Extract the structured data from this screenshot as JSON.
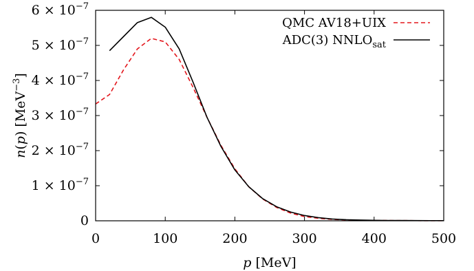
{
  "chart_data": {
    "type": "line",
    "xlabel": "p [MeV]",
    "ylabel": "n(p) [MeV^-3]",
    "xlim": [
      0,
      500
    ],
    "ylim": [
      0,
      6e-07
    ],
    "x_ticks": [
      {
        "v": 0,
        "label": "0"
      },
      {
        "v": 100,
        "label": "100"
      },
      {
        "v": 200,
        "label": "200"
      },
      {
        "v": 300,
        "label": "300"
      },
      {
        "v": 400,
        "label": "400"
      },
      {
        "v": 500,
        "label": "500"
      }
    ],
    "y_ticks": [
      {
        "v": 0,
        "label": "0",
        "exp": false
      },
      {
        "v": 1e-07,
        "label": "1 × 10",
        "exp": true
      },
      {
        "v": 2e-07,
        "label": "2 × 10",
        "exp": true
      },
      {
        "v": 3e-07,
        "label": "3 × 10",
        "exp": true
      },
      {
        "v": 4e-07,
        "label": "4 × 10",
        "exp": true
      },
      {
        "v": 5e-07,
        "label": "5 × 10",
        "exp": true
      },
      {
        "v": 6e-07,
        "label": "6 × 10",
        "exp": true
      }
    ],
    "y_tick_exponent": "−7",
    "grid": false,
    "legend_position": "top-right",
    "series": [
      {
        "name": "QMC AV18+UIX",
        "color": "#e3161c",
        "style": "dashed",
        "x": [
          0,
          20,
          40,
          60,
          80,
          100,
          120,
          140,
          160,
          180,
          200,
          220,
          240,
          260,
          280,
          300,
          320,
          340,
          360,
          380,
          400,
          420,
          440,
          460,
          480,
          500
        ],
        "y": [
          3.33e-07,
          3.6e-07,
          4.3e-07,
          4.9e-07,
          5.2e-07,
          5.1e-07,
          4.6e-07,
          3.8e-07,
          2.95e-07,
          2.15e-07,
          1.48e-07,
          9.7e-08,
          6.2e-08,
          3.8e-08,
          2.2e-08,
          1.2e-08,
          7e-09,
          4e-09,
          2.5e-09,
          1.5e-09,
          1e-09,
          8e-10,
          6e-10,
          5e-10,
          4e-10,
          4e-10
        ]
      },
      {
        "name": "ADC(3) NNLO",
        "name_sub": "sat",
        "color": "#000000",
        "style": "solid",
        "x": [
          20,
          40,
          60,
          80,
          100,
          120,
          140,
          160,
          180,
          200,
          220,
          240,
          260,
          280,
          300,
          320,
          340,
          360,
          380,
          400,
          420,
          440,
          460,
          480,
          500
        ],
        "y": [
          4.85e-07,
          5.25e-07,
          5.65e-07,
          5.8e-07,
          5.52e-07,
          4.9e-07,
          3.95e-07,
          2.95e-07,
          2.12e-07,
          1.45e-07,
          9.7e-08,
          6.3e-08,
          4e-08,
          2.5e-08,
          1.5e-08,
          9e-09,
          5e-09,
          3e-09,
          2e-09,
          1.5e-09,
          1e-09,
          8e-10,
          6e-10,
          5e-10,
          5e-10
        ]
      }
    ]
  }
}
